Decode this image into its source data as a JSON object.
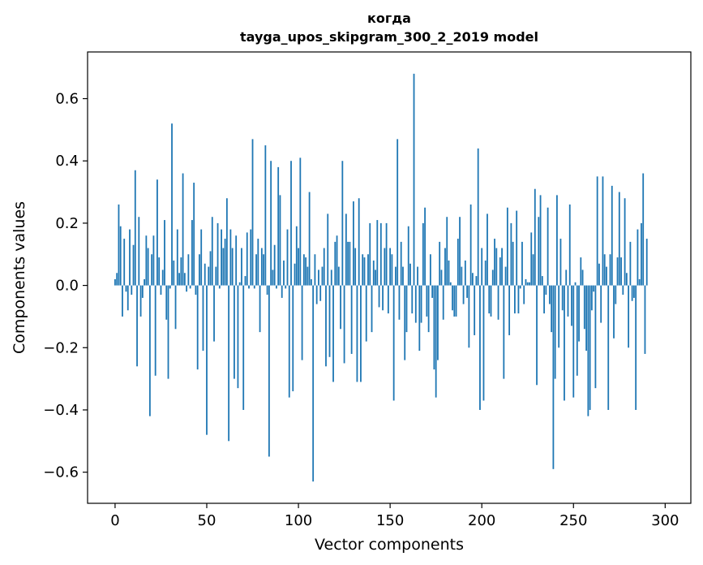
{
  "chart_data": {
    "type": "bar",
    "title": "когда",
    "subtitle": "tayga_upos_skipgram_300_2_2019 model",
    "xlabel": "Vector components",
    "ylabel": "Components values",
    "xlim": [
      -15,
      314
    ],
    "ylim": [
      -0.7,
      0.75
    ],
    "x_ticks": [
      0,
      50,
      100,
      150,
      200,
      250,
      300
    ],
    "x_tick_labels": [
      "0",
      "50",
      "100",
      "150",
      "200",
      "250",
      "300"
    ],
    "y_ticks": [
      -0.6,
      -0.4,
      -0.2,
      0.0,
      0.2,
      0.4,
      0.6
    ],
    "y_tick_labels": [
      "−0.6",
      "−0.4",
      "−0.2",
      "0.0",
      "0.2",
      "0.4",
      "0.6"
    ],
    "grid": false,
    "bar_color": "#1f77b4",
    "series": [
      {
        "values": [
          0.02,
          0.04,
          0.26,
          0.19,
          -0.1,
          0.15,
          -0.02,
          -0.08,
          0.18,
          -0.03,
          0.13,
          0.37,
          -0.26,
          0.22,
          -0.1,
          -0.04,
          0.02,
          0.16,
          0.12,
          -0.42,
          0.1,
          0.16,
          -0.29,
          0.34,
          0.09,
          -0.03,
          0.05,
          0.21,
          -0.11,
          -0.3,
          -0.01,
          0.52,
          0.08,
          -0.14,
          0.18,
          0.04,
          0.09,
          0.36,
          0.04,
          -0.02,
          0.1,
          -0.01,
          0.21,
          0.33,
          -0.03,
          -0.27,
          0.1,
          0.18,
          -0.21,
          0.07,
          -0.48,
          0.06,
          0.11,
          0.22,
          -0.18,
          0.06,
          0.2,
          -0.01,
          0.18,
          0.12,
          0.15,
          0.28,
          -0.5,
          0.18,
          0.12,
          -0.3,
          0.16,
          -0.33,
          0.01,
          0.12,
          -0.4,
          0.03,
          0.17,
          -0.01,
          0.18,
          0.47,
          -0.01,
          0.1,
          0.15,
          -0.15,
          0.12,
          0.1,
          0.45,
          -0.03,
          -0.55,
          0.4,
          0.05,
          0.13,
          -0.01,
          0.38,
          0.29,
          -0.04,
          0.08,
          -0.01,
          0.18,
          -0.36,
          0.4,
          -0.34,
          0.07,
          0.19,
          0.12,
          0.41,
          -0.24,
          0.1,
          0.09,
          0.06,
          0.3,
          0.02,
          -0.63,
          0.1,
          -0.06,
          0.05,
          -0.05,
          0.06,
          0.12,
          -0.26,
          0.23,
          -0.23,
          0.05,
          -0.31,
          0.14,
          0.16,
          0.06,
          -0.14,
          0.4,
          -0.25,
          0.23,
          0.14,
          0.14,
          -0.22,
          0.27,
          0.12,
          -0.31,
          0.28,
          -0.31,
          0.1,
          0.09,
          -0.18,
          0.1,
          0.2,
          -0.15,
          0.08,
          0.05,
          0.21,
          -0.07,
          0.2,
          -0.08,
          0.12,
          0.2,
          -0.09,
          0.12,
          0.1,
          -0.37,
          0.06,
          0.47,
          -0.11,
          0.14,
          0.06,
          -0.24,
          -0.15,
          0.19,
          0.07,
          -0.09,
          0.68,
          -0.12,
          0.06,
          -0.21,
          -0.12,
          0.2,
          0.25,
          -0.1,
          -0.15,
          0.1,
          -0.04,
          -0.27,
          -0.36,
          -0.24,
          0.14,
          0.05,
          -0.11,
          0.12,
          0.22,
          0.08,
          0.01,
          -0.08,
          -0.1,
          -0.1,
          0.15,
          0.22,
          0.06,
          -0.06,
          0.08,
          -0.04,
          -0.2,
          0.26,
          0.04,
          -0.16,
          0.03,
          0.44,
          -0.4,
          0.12,
          -0.37,
          0.08,
          0.23,
          -0.09,
          -0.1,
          0.05,
          0.15,
          0.12,
          -0.11,
          0.09,
          0.12,
          -0.3,
          0.06,
          0.25,
          -0.16,
          0.2,
          0.14,
          -0.09,
          0.24,
          -0.09,
          -0.01,
          0.14,
          -0.06,
          0.02,
          0.01,
          0.01,
          0.17,
          0.1,
          0.31,
          -0.32,
          0.22,
          0.29,
          0.03,
          -0.09,
          -0.03,
          0.25,
          -0.06,
          -0.15,
          -0.59,
          -0.3,
          0.29,
          -0.2,
          0.15,
          -0.08,
          -0.37,
          0.05,
          -0.1,
          0.26,
          -0.13,
          -0.36,
          0.01,
          -0.29,
          -0.18,
          0.09,
          0.05,
          -0.14,
          -0.21,
          -0.42,
          -0.4,
          -0.08,
          -0.02,
          -0.33,
          0.35,
          0.07,
          -0.12,
          0.35,
          0.1,
          0.06,
          -0.4,
          0.1,
          0.32,
          -0.17,
          -0.06,
          0.09,
          0.3,
          0.09,
          -0.03,
          0.28,
          0.04,
          -0.2,
          0.14,
          -0.05,
          -0.04,
          -0.4,
          0.18,
          0.02,
          0.2,
          0.36,
          -0.22,
          0.15
        ]
      }
    ]
  }
}
